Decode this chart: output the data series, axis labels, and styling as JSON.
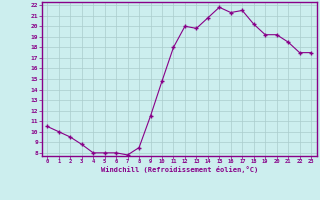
{
  "x": [
    0,
    1,
    2,
    3,
    4,
    5,
    6,
    7,
    8,
    9,
    10,
    11,
    12,
    13,
    14,
    15,
    16,
    17,
    18,
    19,
    20,
    21,
    22,
    23
  ],
  "y": [
    10.5,
    10.0,
    9.5,
    8.8,
    8.0,
    8.0,
    8.0,
    7.8,
    8.5,
    11.5,
    14.8,
    18.0,
    20.0,
    19.8,
    20.8,
    21.8,
    21.3,
    21.5,
    20.2,
    19.2,
    19.2,
    18.5,
    17.5,
    17.5
  ],
  "xlabel": "Windchill (Refroidissement éolien,°C)",
  "ylim": [
    8,
    22
  ],
  "xlim": [
    -0.5,
    23.5
  ],
  "yticks": [
    8,
    9,
    10,
    11,
    12,
    13,
    14,
    15,
    16,
    17,
    18,
    19,
    20,
    21,
    22
  ],
  "xticks": [
    0,
    1,
    2,
    3,
    4,
    5,
    6,
    7,
    8,
    9,
    10,
    11,
    12,
    13,
    14,
    15,
    16,
    17,
    18,
    19,
    20,
    21,
    22,
    23
  ],
  "line_color": "#880088",
  "marker_color": "#880088",
  "bg_color": "#cceeee",
  "grid_color": "#aacccc",
  "border_color": "#880088",
  "label_color": "#880088"
}
